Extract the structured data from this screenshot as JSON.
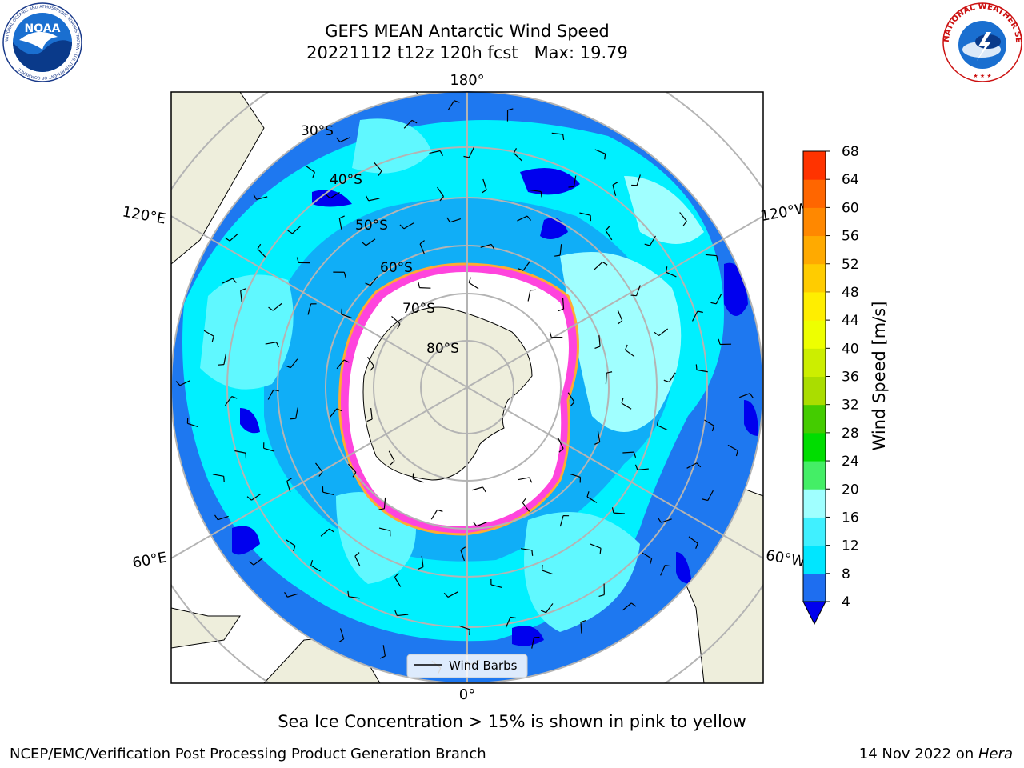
{
  "header": {
    "title_line1": "GEFS MEAN Antarctic Wind Speed",
    "title_line2": "20221112 t12z 120h fcst   Max: 19.79"
  },
  "logos": {
    "noaa_text": "NOAA",
    "noaa_ring_text": "NATIONAL OCEANIC AND ATMOSPHERIC ADMINISTRATION · U.S. DEPARTMENT OF COMMERCE",
    "nws_ring_text": "NATIONAL WEATHER SERVICE"
  },
  "map": {
    "projection": "south-polar-stereographic",
    "longitude_labels": [
      "180°",
      "120°E",
      "120°W",
      "60°E",
      "60°W",
      "0°"
    ],
    "latitude_labels": [
      "30°S",
      "40°S",
      "50°S",
      "60°S",
      "70°S",
      "80°S"
    ],
    "legend_label": "Wind Barbs",
    "sea_ice_colors": [
      "#ff44dd",
      "#ffaa33",
      "#ffdd44"
    ],
    "land_color": "#eeeedc",
    "ocean_color": "#1e78f0"
  },
  "colorbar": {
    "label": "Wind Speed [m/s]",
    "ticks": [
      "4",
      "8",
      "12",
      "16",
      "20",
      "24",
      "28",
      "32",
      "36",
      "40",
      "44",
      "48",
      "52",
      "56",
      "60",
      "64",
      "68"
    ],
    "colors": [
      "#1e6ef0",
      "#00e6ff",
      "#40f0ff",
      "#a0ffff",
      "#44ee66",
      "#00dd00",
      "#44cc00",
      "#aadd00",
      "#ccee00",
      "#eeff00",
      "#ffee00",
      "#ffcc00",
      "#ffaa00",
      "#ff8800",
      "#ff6600",
      "#ff3300",
      "#ff0000"
    ],
    "under_color": "#0000ee"
  },
  "footer": {
    "caption": "Sea Ice Concentration > 15% is shown in pink to yellow",
    "left": "NCEP/EMC/Verification Post Processing Product Generation Branch",
    "right_prefix": "14 Nov 2022 on ",
    "right_host": "Hera"
  }
}
